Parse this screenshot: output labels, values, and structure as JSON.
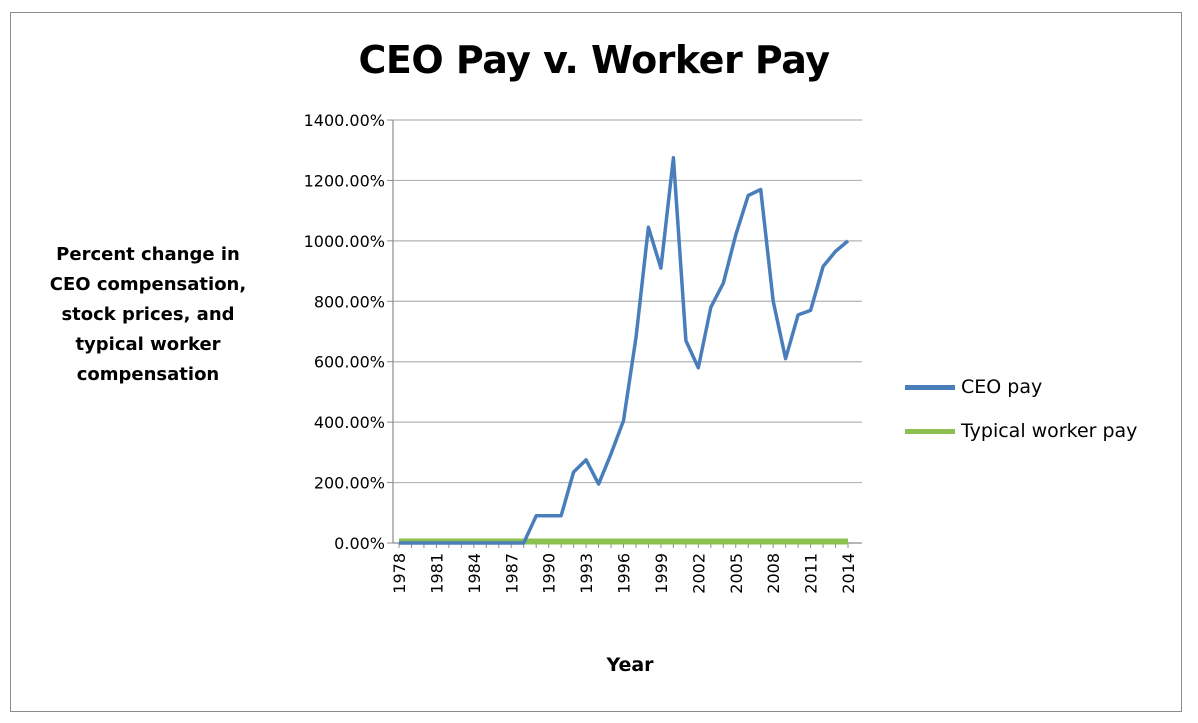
{
  "chart_data": {
    "type": "line",
    "title": "CEO Pay v. Worker Pay",
    "ylabel": "Percent change in CEO compensation, stock prices, and typical worker compensation",
    "xlabel": "Year",
    "ylim": [
      0,
      14
    ],
    "yticks": [
      "0.00%",
      "200.00%",
      "400.00%",
      "600.00%",
      "800.00%",
      "1000.00%",
      "1200.00%",
      "1400.00%"
    ],
    "x": [
      1978,
      1979,
      1980,
      1981,
      1982,
      1983,
      1984,
      1985,
      1986,
      1987,
      1988,
      1989,
      1990,
      1991,
      1992,
      1993,
      1994,
      1995,
      1996,
      1997,
      1998,
      1999,
      2000,
      2001,
      2002,
      2003,
      2004,
      2005,
      2006,
      2007,
      2008,
      2009,
      2010,
      2011,
      2012,
      2013,
      2014
    ],
    "xtick_labels": [
      "1978",
      "1981",
      "1984",
      "1987",
      "1990",
      "1993",
      "1996",
      "1999",
      "2002",
      "2005",
      "2008",
      "2011",
      "2014"
    ],
    "grid": true,
    "legend_position": "right",
    "series": [
      {
        "name": "CEO pay",
        "color": "#4a7ebb",
        "values": [
          0,
          0,
          0,
          0,
          0,
          0,
          0,
          0,
          0,
          0,
          0,
          0.9,
          0.9,
          0.9,
          2.35,
          2.75,
          1.95,
          2.95,
          4.05,
          6.8,
          10.45,
          9.1,
          12.75,
          6.7,
          5.8,
          7.8,
          8.6,
          10.2,
          11.5,
          11.7,
          8.0,
          6.1,
          7.55,
          7.7,
          9.15,
          9.65,
          10.0
        ]
      },
      {
        "name": "Typical worker pay",
        "color": "#8cc152",
        "values": [
          0.05,
          0.05,
          0.05,
          0.05,
          0.05,
          0.05,
          0.05,
          0.05,
          0.05,
          0.05,
          0.05,
          0.05,
          0.05,
          0.05,
          0.05,
          0.05,
          0.05,
          0.05,
          0.05,
          0.05,
          0.05,
          0.05,
          0.05,
          0.05,
          0.05,
          0.05,
          0.05,
          0.05,
          0.05,
          0.05,
          0.05,
          0.05,
          0.05,
          0.05,
          0.05,
          0.05,
          0.05
        ]
      }
    ]
  }
}
